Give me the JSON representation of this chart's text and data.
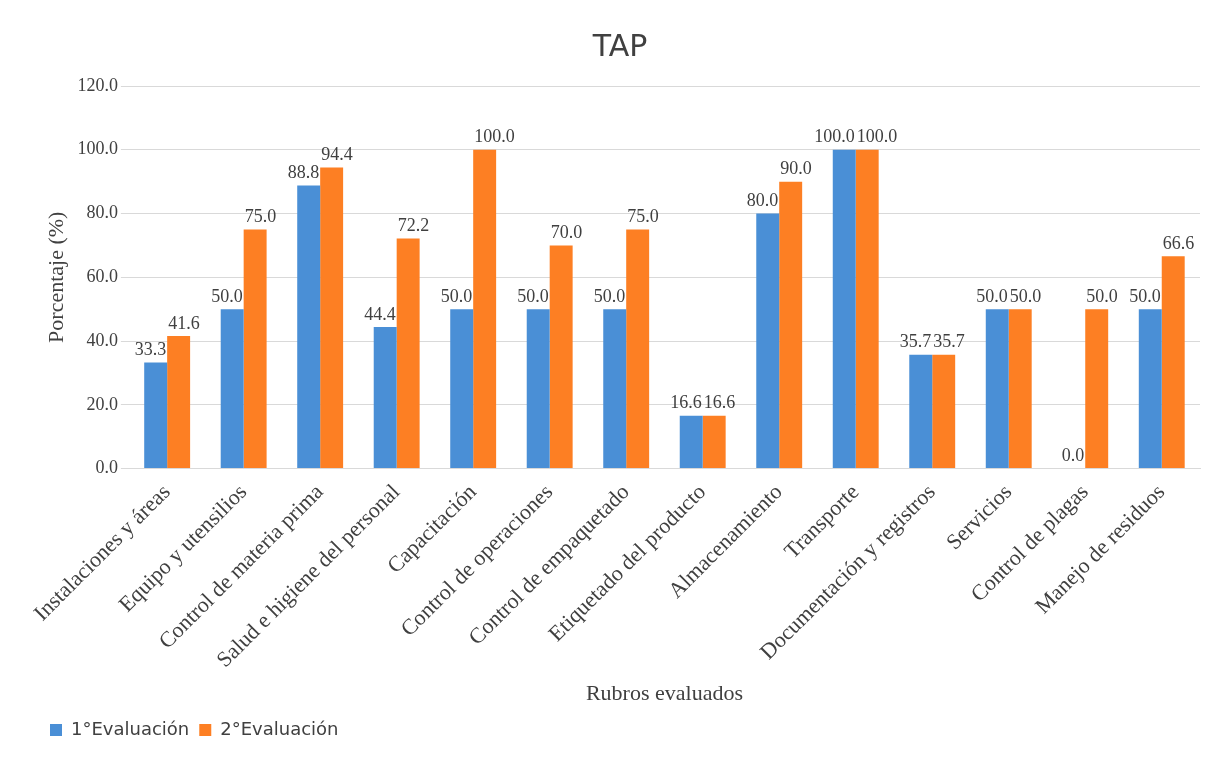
{
  "chart_data": {
    "type": "bar",
    "title": "TAP",
    "xlabel": "Rubros evaluados",
    "ylabel": "Porcentaje (%)",
    "categories": [
      "Instalaciones y áreas",
      "Equipo y utensilios",
      "Control de materia prima",
      "Salud e higiene del personal",
      "Capacitación",
      "Control de operaciones",
      "Control de empaquetado",
      "Etiquetado del producto",
      "Almacenamiento",
      "Transporte",
      "Documentación y registros",
      "Servicios",
      "Control de plagas",
      "Manejo de residuos"
    ],
    "series": [
      {
        "name": "1°Evaluación",
        "color": "#4a8fd6",
        "values": [
          33.3,
          50.0,
          88.8,
          44.4,
          50.0,
          50.0,
          50.0,
          16.6,
          80.0,
          100.0,
          35.7,
          50.0,
          0.0,
          50.0
        ],
        "value_labels": [
          "33.3",
          "50.0",
          "88.8",
          "44.4",
          "50.0",
          "50.0",
          "50.0",
          "16.6",
          "80.0",
          "100.0",
          "35.7",
          "50.0",
          "0.0",
          "50.0"
        ]
      },
      {
        "name": "2°Evaluación",
        "color": "#fd7f23",
        "values": [
          41.6,
          75.0,
          94.4,
          72.2,
          100.0,
          70.0,
          75.0,
          16.6,
          90.0,
          100.0,
          35.7,
          50.0,
          50.0,
          66.6
        ],
        "value_labels": [
          "41.6",
          "75.0",
          "94.4",
          "72.2",
          "100.0",
          "70.0",
          "75.0",
          "16.6",
          "90.0",
          "100.0",
          "35.7",
          "50.0",
          "50.0",
          "66.6"
        ]
      }
    ],
    "ylim": [
      0,
      120
    ],
    "yticks": [
      {
        "value": 0,
        "label": "0.0"
      },
      {
        "value": 20,
        "label": "20.0"
      },
      {
        "value": 40,
        "label": "40.0"
      },
      {
        "value": 60,
        "label": "60.0"
      },
      {
        "value": 80,
        "label": "80.0"
      },
      {
        "value": 100,
        "label": "100.0"
      },
      {
        "value": 120,
        "label": "120.0"
      }
    ],
    "grid": "y",
    "legend": "bottom left"
  }
}
